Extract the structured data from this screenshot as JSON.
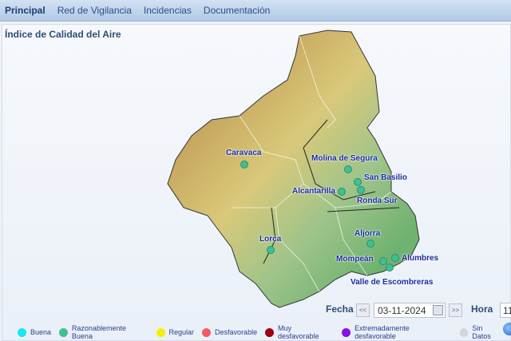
{
  "nav": {
    "items": [
      "Principal",
      "Red de Vigilancia",
      "Incidencias",
      "Documentación"
    ],
    "active": "Principal"
  },
  "title": "Índice de Calidad del Aire",
  "stations": [
    {
      "name": "Caravaca",
      "status": "Razonablemente Buena"
    },
    {
      "name": "Molina de Segura",
      "status": "Razonablemente Buena"
    },
    {
      "name": "San Basilio",
      "status": "Razonablemente Buena"
    },
    {
      "name": "Alcantarilla",
      "status": "Razonablemente Buena"
    },
    {
      "name": "Ronda Sur",
      "status": "Razonablemente Buena"
    },
    {
      "name": "Aljorra",
      "status": "Razonablemente Buena"
    },
    {
      "name": "Lorca",
      "status": "Razonablemente Buena"
    },
    {
      "name": "Mompeán",
      "status": "Razonablemente Buena"
    },
    {
      "name": "Alumbres",
      "status": "Razonablemente Buena"
    },
    {
      "name": "Valle de Escombreras",
      "status": "Razonablemente Buena"
    }
  ],
  "controls": {
    "fecha_label": "Fecha",
    "prev": "<<",
    "next": ">>",
    "date": "03-11-2024",
    "hora_label": "Hora",
    "hora": "11"
  },
  "legend": [
    {
      "label": "Buena",
      "color": "#19e6ee"
    },
    {
      "label": "Razonablemente Buena",
      "color": "#40c090"
    },
    {
      "label": "Regular",
      "color": "#f6f000"
    },
    {
      "label": "Desfavorable",
      "color": "#f55a64"
    },
    {
      "label": "Muy desfavorable",
      "color": "#a00010"
    },
    {
      "label": "Extremadamente desfavorable",
      "color": "#8a10e6"
    },
    {
      "label": "Sin Datos",
      "color": "#d3d6da"
    }
  ]
}
